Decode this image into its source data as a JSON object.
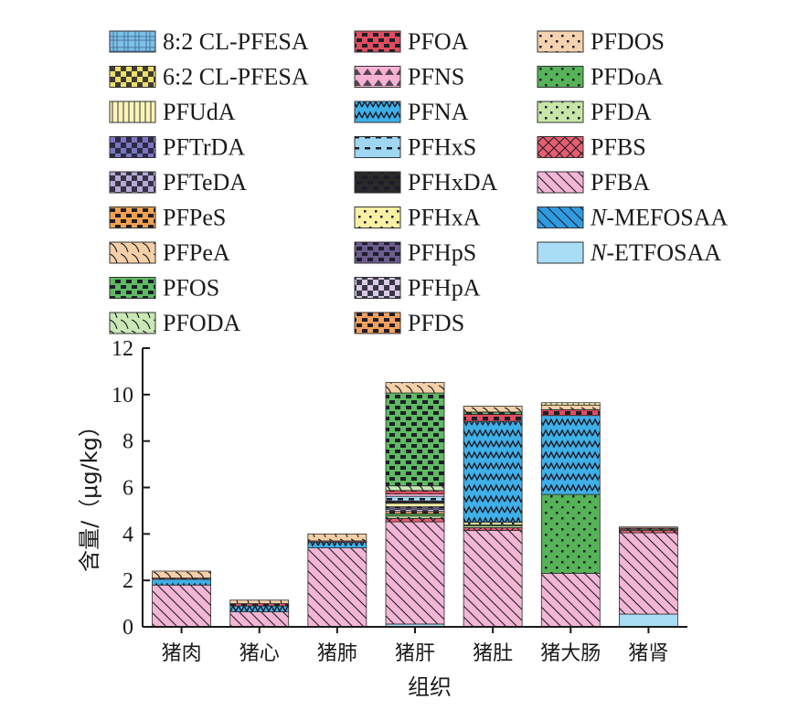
{
  "chart_data": {
    "type": "bar",
    "stacked": true,
    "title": "",
    "xlabel": "组织",
    "ylabel": "含量/（μg/kg）",
    "ylim": [
      0,
      12
    ],
    "yticks": [
      0,
      2,
      4,
      6,
      8,
      10,
      12
    ],
    "grid": false,
    "legend_position": "top",
    "categories": [
      "猪肉",
      "猪心",
      "猪肺",
      "猪肝",
      "猪肚",
      "猪大肠",
      "猪肾"
    ],
    "series": [
      {
        "name": "N-ETFOSAA",
        "prefix": "N",
        "suffix": "-ETFOSAA",
        "color": "#a9dcf5",
        "pattern": "none",
        "values": [
          0,
          0,
          0,
          0.12,
          0,
          0,
          0.55
        ]
      },
      {
        "name": "N-MEFOSAA",
        "prefix": "N",
        "suffix": "-MEFOSAA",
        "color": "#2f9be0",
        "pattern": "diag",
        "values": [
          0,
          0,
          0,
          0,
          0,
          0,
          0
        ]
      },
      {
        "name": "PFBA",
        "color": "#f3b6d4",
        "pattern": "diag",
        "values": [
          1.8,
          0.65,
          3.4,
          4.4,
          4.15,
          2.3,
          3.5
        ]
      },
      {
        "name": "PFBS",
        "color": "#e85e6f",
        "pattern": "cross",
        "values": [
          0,
          0,
          0,
          0.15,
          0.12,
          0,
          0.1
        ]
      },
      {
        "name": "PFDA",
        "color": "#c7e6a7",
        "pattern": "dots",
        "values": [
          0,
          0,
          0,
          0.1,
          0.08,
          0,
          0.05
        ]
      },
      {
        "name": "PFDoA",
        "color": "#56b357",
        "pattern": "dots",
        "values": [
          0,
          0,
          0,
          0.1,
          0.05,
          3.4,
          0
        ]
      },
      {
        "name": "PFDOS",
        "color": "#f5d2b0",
        "pattern": "dots",
        "values": [
          0,
          0,
          0,
          0,
          0,
          0,
          0
        ]
      },
      {
        "name": "PFDS",
        "color": "#f3a05e",
        "pattern": "blocks",
        "values": [
          0,
          0,
          0,
          0.1,
          0,
          0,
          0
        ]
      },
      {
        "name": "PFHpA",
        "color": "#d9cbe6",
        "pattern": "check",
        "values": [
          0,
          0,
          0,
          0.1,
          0,
          0,
          0
        ]
      },
      {
        "name": "PFHpS",
        "color": "#6b5d8f",
        "pattern": "blocks",
        "values": [
          0,
          0,
          0,
          0.1,
          0,
          0,
          0
        ]
      },
      {
        "name": "PFHxA",
        "color": "#fbf1a4",
        "pattern": "dots",
        "values": [
          0,
          0,
          0,
          0.15,
          0.1,
          0,
          0
        ]
      },
      {
        "name": "PFHxDA",
        "color": "#2a2a2a",
        "pattern": "blocks",
        "values": [
          0,
          0,
          0,
          0.1,
          0,
          0,
          0
        ]
      },
      {
        "name": "PFHxS",
        "color": "#9fd7f3",
        "pattern": "hbar",
        "values": [
          0,
          0,
          0,
          0.2,
          0,
          0,
          0
        ]
      },
      {
        "name": "PFNA",
        "color": "#3fb0e8",
        "pattern": "zigzag",
        "values": [
          0.25,
          0.25,
          0.25,
          0,
          4.35,
          3.4,
          0
        ]
      },
      {
        "name": "PFNS",
        "color": "#f7b2d3",
        "pattern": "tri",
        "values": [
          0,
          0,
          0,
          0.1,
          0,
          0,
          0
        ]
      },
      {
        "name": "PFOA",
        "color": "#e04d5f",
        "pattern": "blocks",
        "values": [
          0.05,
          0.1,
          0.05,
          0.15,
          0.3,
          0.25,
          0.05
        ]
      },
      {
        "name": "PFODA",
        "color": "#c9e8b5",
        "pattern": "curve",
        "values": [
          0,
          0,
          0,
          0.2,
          0,
          0,
          0
        ]
      },
      {
        "name": "PFOS",
        "color": "#5fbb62",
        "pattern": "blocks",
        "values": [
          0,
          0,
          0,
          4.0,
          0.1,
          0,
          0
        ]
      },
      {
        "name": "PFPeA",
        "color": "#f5cfa6",
        "pattern": "curve",
        "values": [
          0.3,
          0.15,
          0.3,
          0.45,
          0.25,
          0.2,
          0.05
        ]
      },
      {
        "name": "PFPeS",
        "color": "#f4a24f",
        "pattern": "blocks",
        "values": [
          0,
          0,
          0,
          0,
          0,
          0,
          0
        ]
      },
      {
        "name": "PFTeDA",
        "color": "#b7a9d6",
        "pattern": "check",
        "values": [
          0,
          0,
          0,
          0,
          0,
          0,
          0
        ]
      },
      {
        "name": "PFTrDA",
        "color": "#7b75c4",
        "pattern": "check",
        "values": [
          0,
          0,
          0,
          0,
          0,
          0,
          0
        ]
      },
      {
        "name": "PFUdA",
        "color": "#fbf5b8",
        "pattern": "vlines",
        "values": [
          0,
          0,
          0,
          0,
          0,
          0.1,
          0
        ]
      },
      {
        "name": "6:2 CL-PFESA",
        "color": "#ede06a",
        "pattern": "check",
        "values": [
          0,
          0,
          0,
          0,
          0,
          0,
          0
        ]
      },
      {
        "name": "8:2 CL-PFESA",
        "color": "#7cc1e8",
        "pattern": "grid",
        "values": [
          0,
          0,
          0,
          0,
          0,
          0,
          0
        ]
      }
    ],
    "legend_columns": [
      [
        "8:2 CL-PFESA",
        "6:2 CL-PFESA",
        "PFUdA",
        "PFTrDA",
        "PFTeDA",
        "PFPeS",
        "PFPeA",
        "PFOS",
        "PFODA"
      ],
      [
        "PFOA",
        "PFNS",
        "PFNA",
        "PFHxS",
        "PFHxDA",
        "PFHxA",
        "PFHpS",
        "PFHpA",
        "PFDS"
      ],
      [
        "PFDOS",
        "PFDoA",
        "PFDA",
        "PFBS",
        "PFBA",
        "N-MEFOSAA",
        "N-ETFOSAA"
      ]
    ]
  }
}
